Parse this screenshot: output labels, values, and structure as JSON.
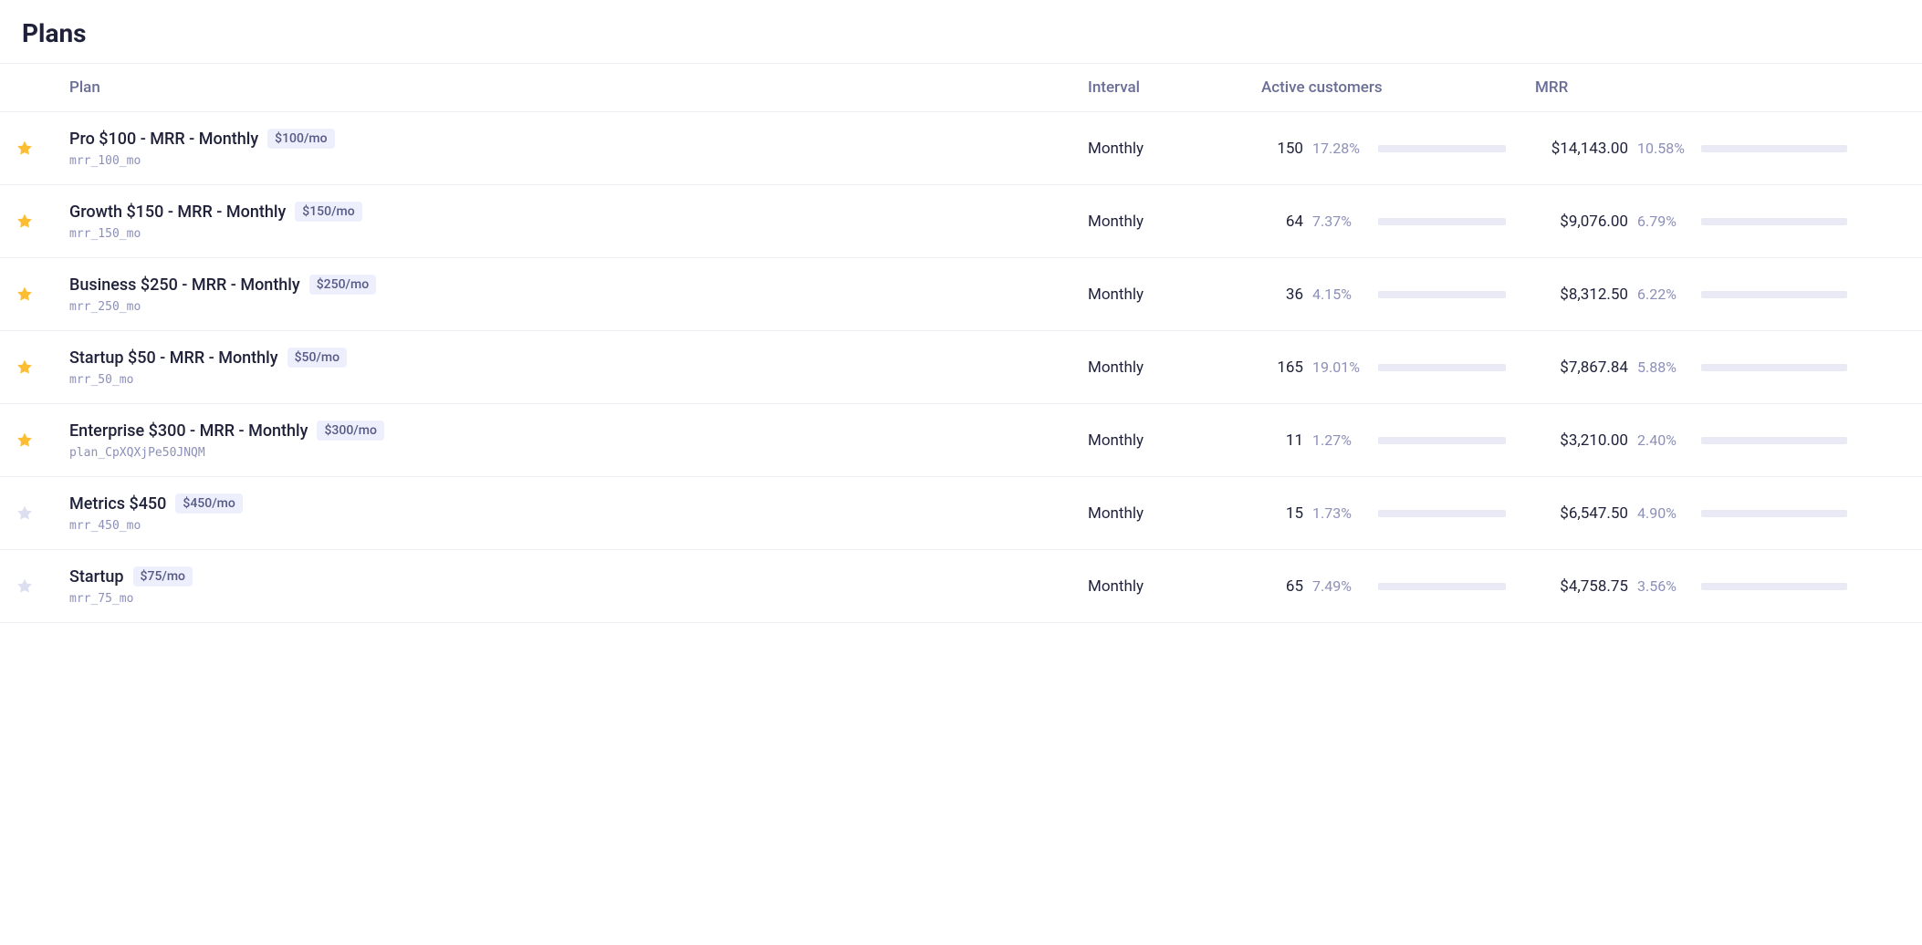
{
  "title": "Plans",
  "columns": {
    "plan": "Plan",
    "interval": "Interval",
    "customers": "Active customers",
    "mrr": "MRR"
  },
  "colors": {
    "star_filled": "#fdbd30",
    "star_empty": "#dcdff0",
    "bar_track": "#e9eaf5",
    "bar_fill": "#4f6af5",
    "badge_bg": "#eeeffd",
    "badge_text": "#565a85",
    "text_primary": "#1e2139",
    "text_muted": "#8c90b8",
    "header_text": "#6a6e96",
    "border": "#edeef5"
  },
  "rows": [
    {
      "starred": true,
      "name": "Pro $100 - MRR - Monthly",
      "price_badge": "$100/mo",
      "plan_id": "mrr_100_mo",
      "interval": "Monthly",
      "customers": "150",
      "customers_pct": "17.28%",
      "customers_bar_pct": 17.28,
      "mrr": "$14,143.00",
      "mrr_pct": "10.58%",
      "mrr_bar_pct": 10.58
    },
    {
      "starred": true,
      "name": "Growth $150 - MRR - Monthly",
      "price_badge": "$150/mo",
      "plan_id": "mrr_150_mo",
      "interval": "Monthly",
      "customers": "64",
      "customers_pct": "7.37%",
      "customers_bar_pct": 7.37,
      "mrr": "$9,076.00",
      "mrr_pct": "6.79%",
      "mrr_bar_pct": 6.79
    },
    {
      "starred": true,
      "name": "Business $250 - MRR - Monthly",
      "price_badge": "$250/mo",
      "plan_id": "mrr_250_mo",
      "interval": "Monthly",
      "customers": "36",
      "customers_pct": "4.15%",
      "customers_bar_pct": 4.15,
      "mrr": "$8,312.50",
      "mrr_pct": "6.22%",
      "mrr_bar_pct": 6.22
    },
    {
      "starred": true,
      "name": "Startup $50 - MRR - Monthly",
      "price_badge": "$50/mo",
      "plan_id": "mrr_50_mo",
      "interval": "Monthly",
      "customers": "165",
      "customers_pct": "19.01%",
      "customers_bar_pct": 19.01,
      "mrr": "$7,867.84",
      "mrr_pct": "5.88%",
      "mrr_bar_pct": 5.88
    },
    {
      "starred": true,
      "name": "Enterprise $300 - MRR - Monthly",
      "price_badge": "$300/mo",
      "plan_id": "plan_CpXQXjPe50JNQM",
      "interval": "Monthly",
      "customers": "11",
      "customers_pct": "1.27%",
      "customers_bar_pct": 1.27,
      "mrr": "$3,210.00",
      "mrr_pct": "2.40%",
      "mrr_bar_pct": 2.4
    },
    {
      "starred": false,
      "name": "Metrics $450",
      "price_badge": "$450/mo",
      "plan_id": "mrr_450_mo",
      "interval": "Monthly",
      "customers": "15",
      "customers_pct": "1.73%",
      "customers_bar_pct": 1.73,
      "mrr": "$6,547.50",
      "mrr_pct": "4.90%",
      "mrr_bar_pct": 4.9
    },
    {
      "starred": false,
      "name": "Startup",
      "price_badge": "$75/mo",
      "plan_id": "mrr_75_mo",
      "interval": "Monthly",
      "customers": "65",
      "customers_pct": "7.49%",
      "customers_bar_pct": 7.49,
      "mrr": "$4,758.75",
      "mrr_pct": "3.56%",
      "mrr_bar_pct": 3.56
    }
  ]
}
